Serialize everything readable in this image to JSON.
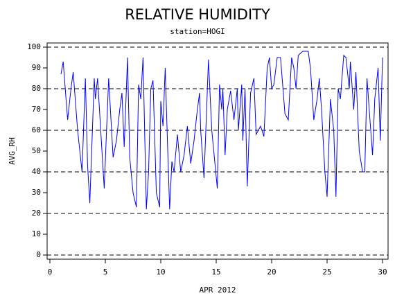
{
  "chart_data": {
    "type": "line",
    "title": "RELATIVE HUMIDITY",
    "subtitle": "station=HOGI",
    "ylabel": "AVG_RH",
    "xlabel": "APR 2012",
    "color": "#0000ff",
    "grid": true,
    "xlim": [
      -0.25,
      30.5
    ],
    "ylim": [
      -2,
      102
    ],
    "xticks": [
      0,
      5,
      10,
      15,
      20,
      25,
      30
    ],
    "yticks": [
      0,
      10,
      20,
      30,
      40,
      50,
      60,
      70,
      80,
      90,
      100
    ],
    "gridlines": [
      0,
      20,
      40,
      60,
      80,
      100
    ],
    "x": [
      1.0,
      1.2,
      1.6,
      1.9,
      2.1,
      2.5,
      2.9,
      3.2,
      3.4,
      3.6,
      4.0,
      4.1,
      4.3,
      4.9,
      5.3,
      5.7,
      6.0,
      6.3,
      6.5,
      6.7,
      6.9,
      7.0,
      7.2,
      7.5,
      7.8,
      8.0,
      8.2,
      8.4,
      8.7,
      8.9,
      9.1,
      9.3,
      9.6,
      9.9,
      10.0,
      10.2,
      10.4,
      10.6,
      10.8,
      11.0,
      11.2,
      11.5,
      11.8,
      12.1,
      12.4,
      12.7,
      13.0,
      13.3,
      13.5,
      13.6,
      13.9,
      14.1,
      14.3,
      14.6,
      15.1,
      15.3,
      15.5,
      15.6,
      15.8,
      16.0,
      16.3,
      16.6,
      16.9,
      17.0,
      17.3,
      17.4,
      17.6,
      17.8,
      18.1,
      18.4,
      18.6,
      19.0,
      19.3,
      19.6,
      19.8,
      20.0,
      20.2,
      20.5,
      20.8,
      21.2,
      21.5,
      21.8,
      22.0,
      22.2,
      22.4,
      22.8,
      23.3,
      23.5,
      23.8,
      24.1,
      24.3,
      24.5,
      24.8,
      25.0,
      25.3,
      25.6,
      25.8,
      26.0,
      26.2,
      26.5,
      26.7,
      27.0,
      27.1,
      27.4,
      27.6,
      27.9,
      28.2,
      28.4,
      28.6,
      28.8,
      29.1,
      29.3,
      29.6,
      29.8,
      30.0
    ],
    "values": [
      87,
      93,
      65,
      80,
      88,
      60,
      40,
      85,
      43,
      25,
      85,
      75,
      85,
      32,
      85,
      47,
      55,
      70,
      78,
      52,
      80,
      95,
      47,
      30,
      23,
      82,
      75,
      95,
      22,
      40,
      80,
      84,
      30,
      23,
      74,
      62,
      90,
      55,
      22,
      45,
      40,
      58,
      40,
      48,
      62,
      44,
      55,
      70,
      78,
      60,
      37,
      65,
      94,
      60,
      32,
      82,
      70,
      80,
      48,
      70,
      79,
      65,
      80,
      60,
      82,
      55,
      80,
      33,
      78,
      85,
      58,
      62,
      57,
      90,
      95,
      80,
      82,
      95,
      95,
      68,
      65,
      95,
      90,
      80,
      96,
      98,
      98,
      90,
      65,
      75,
      85,
      70,
      40,
      28,
      75,
      60,
      28,
      80,
      75,
      96,
      95,
      80,
      93,
      70,
      88,
      50,
      40,
      40,
      85,
      70,
      48,
      75,
      90,
      55,
      95
    ]
  }
}
